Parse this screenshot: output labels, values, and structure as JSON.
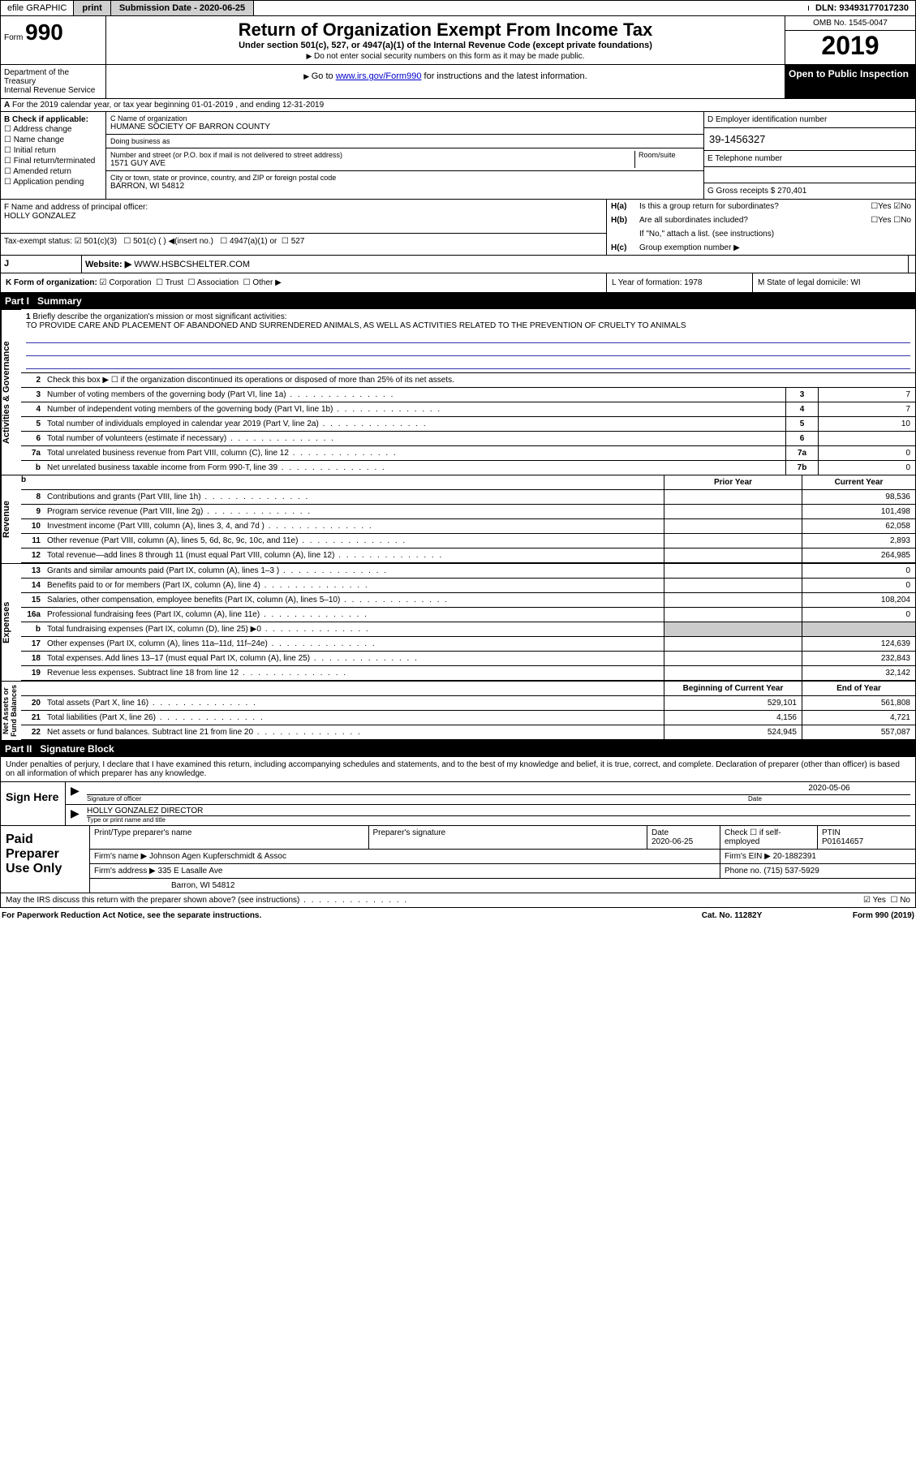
{
  "topbar": {
    "efile": "efile GRAPHIC",
    "print": "print",
    "subdate_lbl": "Submission Date - 2020-06-25",
    "dln": "DLN: 93493177017230"
  },
  "header": {
    "form_prefix": "Form",
    "form_num": "990",
    "title": "Return of Organization Exempt From Income Tax",
    "subtitle": "Under section 501(c), 527, or 4947(a)(1) of the Internal Revenue Code (except private foundations)",
    "note1": "Do not enter social security numbers on this form as it may be made public.",
    "note2_pre": "Go to ",
    "note2_link": "www.irs.gov/Form990",
    "note2_post": " for instructions and the latest information.",
    "omb": "OMB No. 1545-0047",
    "year": "2019",
    "public": "Open to Public Inspection",
    "dept": "Department of the Treasury\nInternal Revenue Service"
  },
  "a": "For the 2019 calendar year, or tax year beginning 01-01-2019   , and ending 12-31-2019",
  "b": {
    "lbl": "B Check if applicable:",
    "items": [
      "Address change",
      "Name change",
      "Initial return",
      "Final return/terminated",
      "Amended return",
      "Application pending"
    ]
  },
  "c": {
    "name_lbl": "C Name of organization",
    "name": "HUMANE SOCIETY OF BARRON COUNTY",
    "dba_lbl": "Doing business as",
    "dba": "",
    "addr_lbl": "Number and street (or P.O. box if mail is not delivered to street address)",
    "room_lbl": "Room/suite",
    "addr": "1571 GUY AVE",
    "city_lbl": "City or town, state or province, country, and ZIP or foreign postal code",
    "city": "BARRON, WI  54812"
  },
  "d": {
    "lbl": "D Employer identification number",
    "ein": "39-1456327"
  },
  "e": {
    "lbl": "E Telephone number",
    "val": ""
  },
  "g": {
    "lbl": "G Gross receipts $ 270,401"
  },
  "f": {
    "lbl": "F  Name and address of principal officer:",
    "name": "HOLLY GONZALEZ"
  },
  "h": {
    "a_lbl": "H(a)",
    "a_q": "Is this a group return for subordinates?",
    "b_lbl": "H(b)",
    "b_q": "Are all subordinates included?",
    "note": "If \"No,\" attach a list. (see instructions)",
    "c_lbl": "H(c)",
    "c_q": "Group exemption number ▶"
  },
  "i": {
    "lbl": "Tax-exempt status:",
    "o1": "501(c)(3)",
    "o2": "501(c) (  ) ◀(insert no.)",
    "o3": "4947(a)(1) or",
    "o4": "527"
  },
  "j": {
    "lbl": "J",
    "web_lbl": "Website: ▶",
    "web": "WWW.HSBCSHELTER.COM"
  },
  "k": {
    "lbl": "K Form of organization:",
    "o1": "Corporation",
    "o2": "Trust",
    "o3": "Association",
    "o4": "Other ▶"
  },
  "l": {
    "lbl": "L Year of formation: 1978"
  },
  "m": {
    "lbl": "M State of legal domicile: WI"
  },
  "part1": {
    "hdr_n": "Part I",
    "hdr_t": "Summary",
    "vtabs": {
      "ag": "Activities & Governance",
      "rev": "Revenue",
      "exp": "Expenses",
      "na": "Net Assets or\nFund Balances"
    },
    "l1_n": "1",
    "l1_t": "Briefly describe the organization's mission or most significant activities:",
    "l1_v": "TO PROVIDE CARE AND PLACEMENT OF ABANDONED AND SURRENDERED ANIMALS, AS WELL AS ACTIVITIES RELATED TO THE PREVENTION OF CRUELTY TO ANIMALS",
    "l2_n": "2",
    "l2_t": "Check this box ▶ ☐  if the organization discontinued its operations or disposed of more than 25% of its net assets.",
    "lines_ag": [
      {
        "n": "3",
        "t": "Number of voting members of the governing body (Part VI, line 1a)",
        "box": "3",
        "v": "7"
      },
      {
        "n": "4",
        "t": "Number of independent voting members of the governing body (Part VI, line 1b)",
        "box": "4",
        "v": "7"
      },
      {
        "n": "5",
        "t": "Total number of individuals employed in calendar year 2019 (Part V, line 2a)",
        "box": "5",
        "v": "10"
      },
      {
        "n": "6",
        "t": "Total number of volunteers (estimate if necessary)",
        "box": "6",
        "v": ""
      },
      {
        "n": "7a",
        "t": "Total unrelated business revenue from Part VIII, column (C), line 12",
        "box": "7a",
        "v": "0"
      },
      {
        "n": "b",
        "t": "Net unrelated business taxable income from Form 990-T, line 39",
        "box": "7b",
        "v": "0"
      }
    ],
    "hdr_py": "Prior Year",
    "hdr_cy": "Current Year",
    "lines_rev": [
      {
        "n": "8",
        "t": "Contributions and grants (Part VIII, line 1h)",
        "py": "",
        "cy": "98,536"
      },
      {
        "n": "9",
        "t": "Program service revenue (Part VIII, line 2g)",
        "py": "",
        "cy": "101,498"
      },
      {
        "n": "10",
        "t": "Investment income (Part VIII, column (A), lines 3, 4, and 7d )",
        "py": "",
        "cy": "62,058"
      },
      {
        "n": "11",
        "t": "Other revenue (Part VIII, column (A), lines 5, 6d, 8c, 9c, 10c, and 11e)",
        "py": "",
        "cy": "2,893"
      },
      {
        "n": "12",
        "t": "Total revenue—add lines 8 through 11 (must equal Part VIII, column (A), line 12)",
        "py": "",
        "cy": "264,985"
      }
    ],
    "lines_exp": [
      {
        "n": "13",
        "t": "Grants and similar amounts paid (Part IX, column (A), lines 1–3 )",
        "py": "",
        "cy": "0"
      },
      {
        "n": "14",
        "t": "Benefits paid to or for members (Part IX, column (A), line 4)",
        "py": "",
        "cy": "0"
      },
      {
        "n": "15",
        "t": "Salaries, other compensation, employee benefits (Part IX, column (A), lines 5–10)",
        "py": "",
        "cy": "108,204"
      },
      {
        "n": "16a",
        "t": "Professional fundraising fees (Part IX, column (A), line 11e)",
        "py": "",
        "cy": "0"
      },
      {
        "n": "b",
        "t": "Total fundraising expenses (Part IX, column (D), line 25) ▶0",
        "py": "grey",
        "cy": "grey"
      },
      {
        "n": "17",
        "t": "Other expenses (Part IX, column (A), lines 11a–11d, 11f–24e)",
        "py": "",
        "cy": "124,639"
      },
      {
        "n": "18",
        "t": "Total expenses. Add lines 13–17 (must equal Part IX, column (A), line 25)",
        "py": "",
        "cy": "232,843"
      },
      {
        "n": "19",
        "t": "Revenue less expenses. Subtract line 18 from line 12",
        "py": "",
        "cy": "32,142"
      }
    ],
    "hdr_bcy": "Beginning of Current Year",
    "hdr_eoy": "End of Year",
    "lines_na": [
      {
        "n": "20",
        "t": "Total assets (Part X, line 16)",
        "py": "529,101",
        "cy": "561,808"
      },
      {
        "n": "21",
        "t": "Total liabilities (Part X, line 26)",
        "py": "4,156",
        "cy": "4,721"
      },
      {
        "n": "22",
        "t": "Net assets or fund balances. Subtract line 21 from line 20",
        "py": "524,945",
        "cy": "557,087"
      }
    ]
  },
  "part2": {
    "hdr_n": "Part II",
    "hdr_t": "Signature Block"
  },
  "sig": {
    "decl": "Under penalties of perjury, I declare that I have examined this return, including accompanying schedules and statements, and to the best of my knowledge and belief, it is true, correct, and complete. Declaration of preparer (other than officer) is based on all information of which preparer has any knowledge.",
    "sign_here": "Sign Here",
    "sig_lbl": "Signature of officer",
    "date_lbl": "Date",
    "date": "2020-05-06",
    "name": "HOLLY GONZALEZ  DIRECTOR",
    "name_lbl": "Type or print name and title"
  },
  "prep": {
    "lbl": "Paid Preparer Use Only",
    "h1": "Print/Type preparer's name",
    "h2": "Preparer's signature",
    "h3": "Date",
    "h3v": "2020-06-25",
    "h4": "Check ☐ if self-employed",
    "h5": "PTIN",
    "h5v": "P01614657",
    "firm_lbl": "Firm's name   ▶",
    "firm": "Johnson Agen Kupferschmidt & Assoc",
    "ein_lbl": "Firm's EIN ▶",
    "ein": "20-1882391",
    "addr_lbl": "Firm's address ▶",
    "addr1": "335 E Lasalle Ave",
    "addr2": "Barron, WI  54812",
    "phone_lbl": "Phone no.",
    "phone": "(715) 537-5929"
  },
  "irs": {
    "q": "May the IRS discuss this return with the preparer shown above? (see instructions)",
    "yes": "Yes",
    "no": "No"
  },
  "footer": {
    "f1": "For Paperwork Reduction Act Notice, see the separate instructions.",
    "f2": "Cat. No. 11282Y",
    "f3": "Form 990 (2019)"
  }
}
